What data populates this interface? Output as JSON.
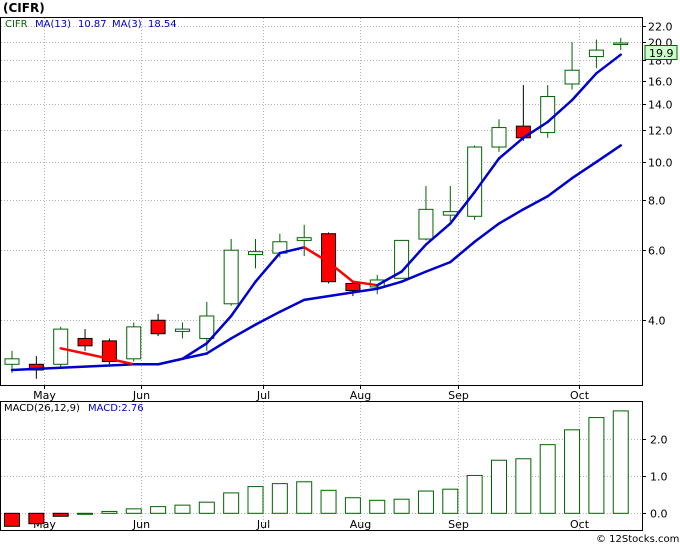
{
  "header": {
    "ticker_label": "(CIFR)",
    "legend_symbol": "CIFR",
    "ma13_label": "MA(13)",
    "ma13_value": "10.87",
    "ma3_label": "MA(3)",
    "ma3_value": "18.54"
  },
  "macd_header": {
    "label": "MACD(26,12,9)",
    "value_label": "MACD:2.76"
  },
  "price_badge": "19.9",
  "watermark": "© 12Stocks.com",
  "colors": {
    "background": "#ffffff",
    "grid": "#b4b4b4",
    "axis": "#000000",
    "up_candle_fill": "#ffffff",
    "up_candle_stroke": "#006400",
    "down_candle_fill": "#ff0000",
    "ma_fast_up": "#0000cc",
    "ma_fast_down": "#ff0000",
    "ma_slow": "#0000cc",
    "macd_up_stroke": "#006400",
    "macd_down_fill": "#ff0000",
    "legend_ma13": "#0000cc",
    "legend_ticker": "#006400",
    "badge_fill": "#ccffcc"
  },
  "chart_data": [
    {
      "type": "candlestick",
      "title": "(CIFR)",
      "y_scale": "log",
      "ylim": [
        2.75,
        23.0
      ],
      "y_ticks": [
        "4.0",
        "6.0",
        "8.0",
        "10.0",
        "12.0",
        "14.0",
        "16.0",
        "18.0",
        "20.0",
        "22.0"
      ],
      "x_labels": [
        "May",
        "Jun",
        "Jul",
        "Aug",
        "Sep",
        "Oct"
      ],
      "x_label_weeks": [
        1.3,
        5.3,
        10.3,
        14.3,
        18.3,
        23.3
      ],
      "weeks": [
        {
          "open": 3.1,
          "high": 3.35,
          "low": 2.95,
          "close": 3.2
        },
        {
          "open": 3.1,
          "high": 3.25,
          "low": 2.85,
          "close": 3.0
        },
        {
          "open": 3.1,
          "high": 3.85,
          "low": 3.05,
          "close": 3.8
        },
        {
          "open": 3.6,
          "high": 3.8,
          "low": 3.35,
          "close": 3.45
        },
        {
          "open": 3.55,
          "high": 3.6,
          "low": 3.1,
          "close": 3.15
        },
        {
          "open": 3.2,
          "high": 3.95,
          "low": 3.15,
          "close": 3.85
        },
        {
          "open": 4.0,
          "high": 4.15,
          "low": 3.65,
          "close": 3.7
        },
        {
          "open": 3.75,
          "high": 3.95,
          "low": 3.6,
          "close": 3.8
        },
        {
          "open": 3.6,
          "high": 4.45,
          "low": 3.35,
          "close": 4.1
        },
        {
          "open": 4.4,
          "high": 6.4,
          "low": 4.35,
          "close": 6.0
        },
        {
          "open": 5.85,
          "high": 6.4,
          "low": 5.4,
          "close": 5.95
        },
        {
          "open": 5.9,
          "high": 6.6,
          "low": 5.75,
          "close": 6.3
        },
        {
          "open": 6.35,
          "high": 6.95,
          "low": 5.8,
          "close": 6.45
        },
        {
          "open": 6.6,
          "high": 6.65,
          "low": 4.95,
          "close": 5.0
        },
        {
          "open": 4.95,
          "high": 5.0,
          "low": 4.6,
          "close": 4.75
        },
        {
          "open": 4.85,
          "high": 5.2,
          "low": 4.65,
          "close": 5.05
        },
        {
          "open": 5.1,
          "high": 6.35,
          "low": 5.1,
          "close": 6.35
        },
        {
          "open": 6.4,
          "high": 8.7,
          "low": 6.35,
          "close": 7.6
        },
        {
          "open": 7.35,
          "high": 8.7,
          "low": 7.1,
          "close": 7.5
        },
        {
          "open": 7.3,
          "high": 11.0,
          "low": 7.15,
          "close": 10.9
        },
        {
          "open": 10.9,
          "high": 12.8,
          "low": 10.6,
          "close": 12.2
        },
        {
          "open": 12.3,
          "high": 15.6,
          "low": 11.3,
          "close": 11.5
        },
        {
          "open": 11.85,
          "high": 15.6,
          "low": 11.5,
          "close": 14.6
        },
        {
          "open": 15.7,
          "high": 20.0,
          "low": 15.2,
          "close": 17.0
        },
        {
          "open": 18.4,
          "high": 20.3,
          "low": 17.2,
          "close": 19.1
        },
        {
          "open": 19.9,
          "high": 20.5,
          "low": 19.1,
          "close": 19.9
        }
      ],
      "series": [
        {
          "name": "MA(3)",
          "values": [
            null,
            null,
            3.4,
            3.3,
            3.2,
            3.1,
            3.1,
            3.2,
            3.5,
            4.1,
            5.0,
            5.9,
            6.1,
            5.6,
            5.0,
            4.9,
            5.3,
            6.2,
            7.0,
            8.4,
            10.2,
            11.5,
            12.6,
            14.3,
            16.7,
            18.6
          ]
        },
        {
          "name": "MA(13)",
          "values": [
            3.0,
            null,
            null,
            null,
            null,
            3.1,
            3.1,
            3.2,
            3.3,
            3.6,
            3.9,
            4.2,
            4.5,
            4.6,
            4.7,
            4.8,
            5.0,
            5.3,
            5.6,
            6.3,
            7.0,
            7.6,
            8.2,
            9.1,
            10.0,
            11.0
          ]
        }
      ]
    },
    {
      "type": "bar",
      "title": "MACD(26,12,9)",
      "ylim": [
        -0.45,
        3.0
      ],
      "y_ticks": [
        "0.0",
        "1.0",
        "2.0"
      ],
      "x_labels": [
        "May",
        "Jun",
        "Jul",
        "Aug",
        "Sep",
        "Oct"
      ],
      "x_label_weeks": [
        1.3,
        5.3,
        10.3,
        14.3,
        18.3,
        23.3
      ],
      "values": [
        -0.35,
        -0.28,
        -0.08,
        0.0,
        0.05,
        0.12,
        0.18,
        0.22,
        0.3,
        0.55,
        0.72,
        0.8,
        0.85,
        0.62,
        0.42,
        0.35,
        0.38,
        0.6,
        0.65,
        1.02,
        1.43,
        1.47,
        1.85,
        2.25,
        2.58,
        2.76
      ]
    }
  ]
}
